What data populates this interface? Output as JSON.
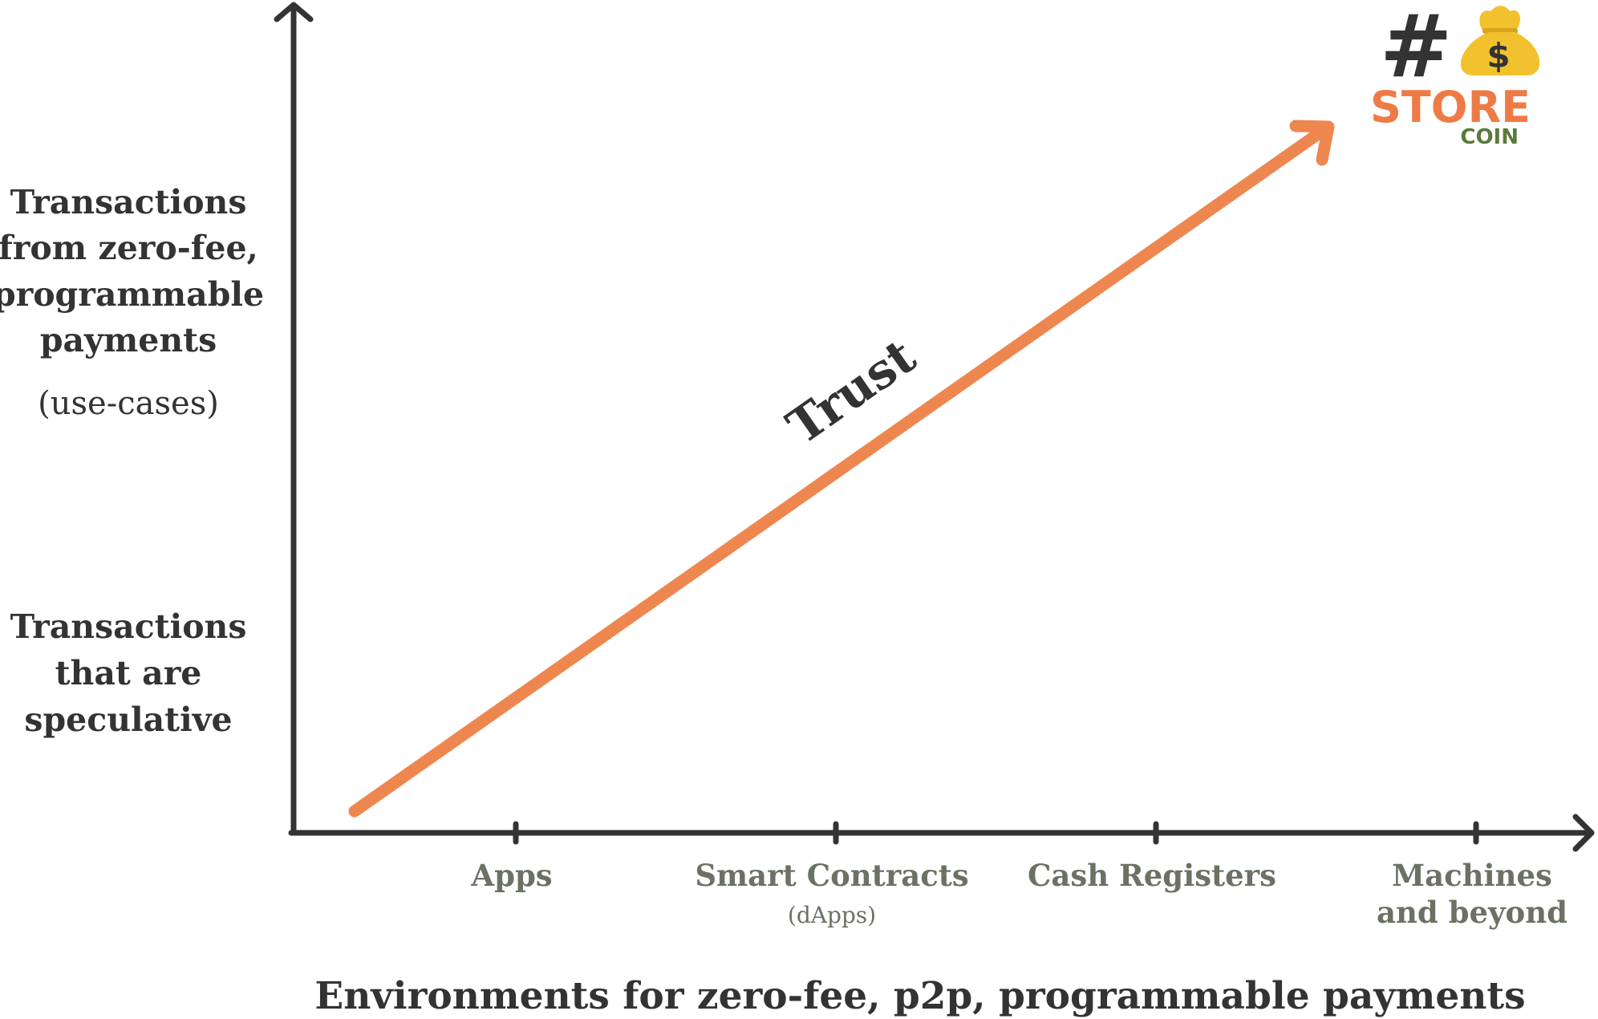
{
  "colors": {
    "axis": "#333333",
    "arrow": "#ee874f",
    "tick_text": "#6b7264",
    "logo_orange": "#ee7b45",
    "logo_green": "#5c7a3a",
    "logo_gold": "#f2c12e"
  },
  "y_labels": {
    "top": {
      "lines": [
        "Transactions",
        "from zero-fee,",
        "programmable",
        "payments"
      ],
      "sub": "(use-cases)"
    },
    "bottom": {
      "lines": [
        "Transactions",
        "that are",
        "speculative"
      ]
    }
  },
  "x_ticks": [
    {
      "label": "Apps",
      "label2": "",
      "sub": ""
    },
    {
      "label": "Smart Contracts",
      "label2": "",
      "sub": "(dApps)"
    },
    {
      "label": "Cash Registers",
      "label2": "",
      "sub": ""
    },
    {
      "label": "Machines",
      "label2": "and beyond",
      "sub": ""
    }
  ],
  "x_axis_title": "Environments for zero-fee, p2p, programmable payments",
  "trend_label": "Trust",
  "logo": {
    "hash": "#",
    "dollar": "$",
    "store": "STORE",
    "coin": "COIN",
    "icon": "money-bag-icon"
  }
}
